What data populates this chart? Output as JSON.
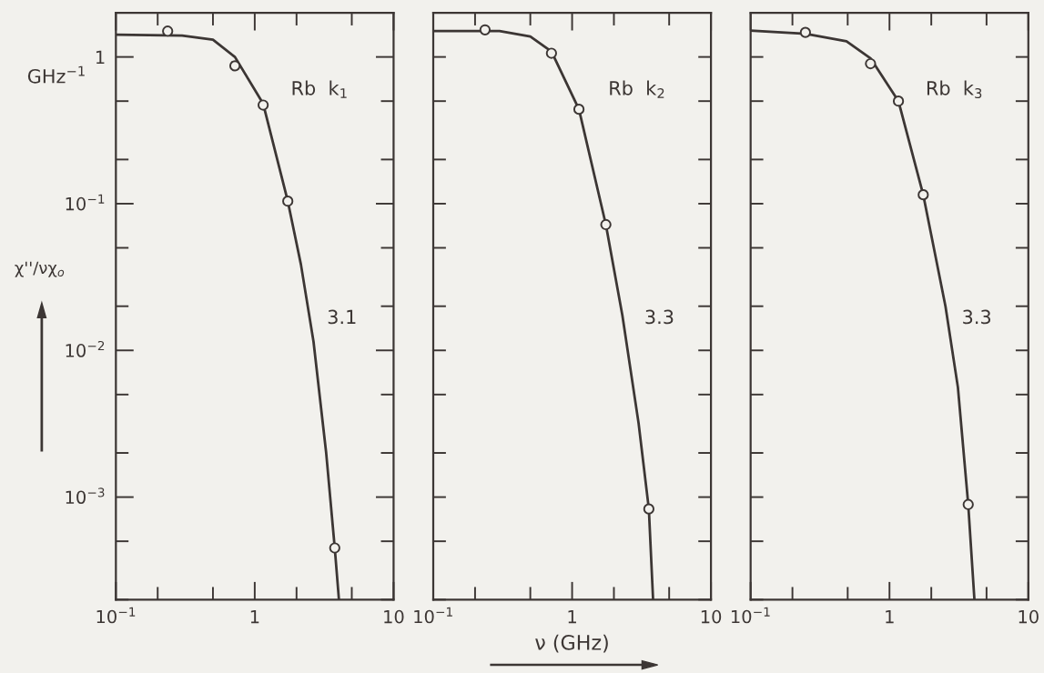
{
  "chart_data": [
    {
      "type": "line",
      "log": "xy",
      "xlim": [
        0.1,
        10
      ],
      "ylim": [
        0.0002,
        2
      ],
      "xticks": [
        {
          "value": 0.1,
          "label": "10$^{−1}$"
        },
        {
          "value": 0.2,
          "label": null
        },
        {
          "value": 0.5,
          "label": null
        },
        1,
        {
          "value": 2,
          "label": null
        },
        {
          "value": 5,
          "label": null
        },
        10
      ],
      "yticks": [
        {
          "value": 0.0002,
          "label": null
        },
        {
          "value": 0.0005,
          "label": null
        },
        {
          "value": 0.001,
          "label": "10$^{−3}$"
        },
        {
          "value": 0.002,
          "label": null
        },
        {
          "value": 0.005,
          "label": null
        },
        {
          "value": 0.01,
          "label": "10$^{−2}$"
        },
        {
          "value": 0.02,
          "label": null
        },
        {
          "value": 0.05,
          "label": null
        },
        {
          "value": 0.1,
          "label": "10$^{−1}$"
        },
        {
          "value": 0.2,
          "label": null
        },
        {
          "value": 0.5,
          "label": null
        },
        1
      ],
      "ylabel": "χ''/νχ$_{o}$",
      "annotations": [
        "Rb  k$_{1}$",
        "3.1",
        "GHz$^{−1}$"
      ],
      "series": [
        {
          "color": "#3c3634",
          "marker": "none",
          "x": [
            0.1,
            0.3,
            0.5,
            0.72,
            1.15,
            1.73,
            2.15,
            2.65,
            3.27,
            3.77,
            4.04
          ],
          "values": [
            1.42,
            1.4,
            1.31,
            1.0,
            0.48,
            0.104,
            0.0386,
            0.0115,
            0.002,
            0.00045,
            0.0002
          ]
        },
        {
          "type": "scatter",
          "color": "#3c3634",
          "marker": "circle",
          "x": [
            0.236,
            0.72,
            1.15,
            1.73,
            3.77
          ],
          "values": [
            1.5,
            0.87,
            0.47,
            0.104,
            0.00045
          ]
        }
      ]
    },
    {
      "type": "line",
      "log": "xy",
      "xlim": [
        0.1,
        10
      ],
      "ylim": [
        0.0002,
        2
      ],
      "tick_labels": "x",
      "xticks": [
        {
          "value": 0.1,
          "label": "10$^{−1}$"
        },
        {
          "value": 0.2,
          "label": null
        },
        {
          "value": 0.5,
          "label": null
        },
        1,
        {
          "value": 2,
          "label": null
        },
        {
          "value": 5,
          "label": null
        },
        10
      ],
      "yticks": [
        {
          "value": 0.0002,
          "label": null
        },
        {
          "value": 0.0005,
          "label": null
        },
        {
          "value": 0.001,
          "label": null
        },
        {
          "value": 0.002,
          "label": null
        },
        {
          "value": 0.005,
          "label": null
        },
        {
          "value": 0.01,
          "label": null
        },
        {
          "value": 0.02,
          "label": null
        },
        {
          "value": 0.05,
          "label": null
        },
        {
          "value": 0.1,
          "label": null
        },
        {
          "value": 0.2,
          "label": null
        },
        {
          "value": 0.5,
          "label": null
        },
        {
          "value": 1,
          "label": null
        }
      ],
      "xlabel": "ν (GHz)",
      "annotations": [
        "Rb  k$_{2}$",
        "3.3"
      ],
      "series": [
        {
          "color": "#3c3634",
          "marker": "none",
          "x": [
            0.1,
            0.3,
            0.5,
            0.71,
            1.12,
            1.75,
            2.3,
            3.01,
            3.57,
            3.83
          ],
          "values": [
            1.5,
            1.5,
            1.38,
            1.09,
            0.44,
            0.072,
            0.0174,
            0.0032,
            0.00083,
            0.0002
          ]
        },
        {
          "type": "scatter",
          "color": "#3c3634",
          "marker": "circle",
          "x": [
            0.236,
            0.71,
            1.12,
            1.75,
            3.57
          ],
          "values": [
            1.53,
            1.06,
            0.44,
            0.072,
            0.00083
          ]
        }
      ]
    },
    {
      "type": "line",
      "log": "xy",
      "xlim": [
        0.1,
        10
      ],
      "ylim": [
        0.0002,
        2
      ],
      "tick_labels": "x",
      "xticks": [
        {
          "value": 0.1,
          "label": "10$^{−1}$"
        },
        {
          "value": 0.2,
          "label": null
        },
        {
          "value": 0.5,
          "label": null
        },
        1,
        {
          "value": 2,
          "label": null
        },
        {
          "value": 5,
          "label": null
        },
        10
      ],
      "yticks": [
        {
          "value": 0.0002,
          "label": null
        },
        {
          "value": 0.0005,
          "label": null
        },
        {
          "value": 0.001,
          "label": null
        },
        {
          "value": 0.002,
          "label": null
        },
        {
          "value": 0.005,
          "label": null
        },
        {
          "value": 0.01,
          "label": null
        },
        {
          "value": 0.02,
          "label": null
        },
        {
          "value": 0.05,
          "label": null
        },
        {
          "value": 0.1,
          "label": null
        },
        {
          "value": 0.2,
          "label": null
        },
        {
          "value": 0.5,
          "label": null
        },
        {
          "value": 1,
          "label": null
        }
      ],
      "annotations": [
        "Rb  k$_{3}$",
        "3.3"
      ],
      "series": [
        {
          "color": "#3c3634",
          "marker": "none",
          "x": [
            0.1,
            0.248,
            0.49,
            0.73,
            1.16,
            1.75,
            2.53,
            3.11,
            3.69,
            4.09
          ],
          "values": [
            1.51,
            1.44,
            1.28,
            0.98,
            0.5,
            0.115,
            0.02,
            0.0056,
            0.00089,
            0.0002
          ]
        },
        {
          "type": "scatter",
          "color": "#3c3634",
          "marker": "circle",
          "x": [
            0.248,
            0.73,
            1.16,
            1.75,
            3.69
          ],
          "values": [
            1.47,
            0.9,
            0.5,
            0.115,
            0.00089
          ]
        }
      ]
    }
  ]
}
